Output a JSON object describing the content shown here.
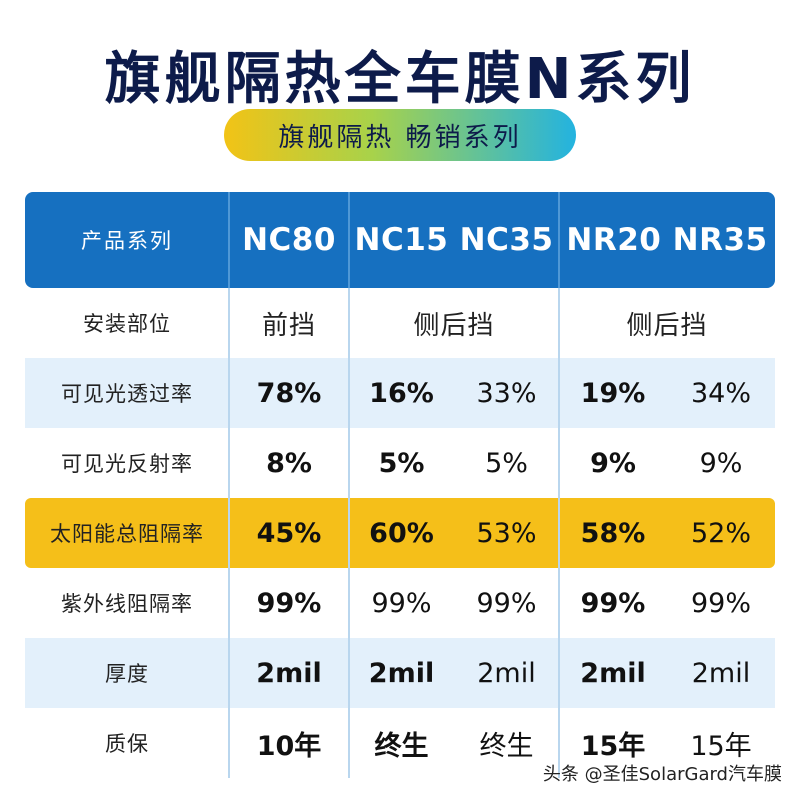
{
  "title": "旗舰隔热全车膜N系列",
  "subtitle": "旗舰隔热 畅销系列",
  "header": {
    "label": "产品系列",
    "col1": "NC80",
    "col2": "NC15 NC35",
    "col3": "NR20 NR35"
  },
  "rows": [
    {
      "label": "安装部位",
      "loc1": "前挡",
      "loc2": "侧后挡",
      "loc3": "侧后挡"
    },
    {
      "label": "可见光透过率",
      "v": [
        "78%",
        "16%",
        "33%",
        "19%",
        "34%"
      ]
    },
    {
      "label": "可见光反射率",
      "v": [
        "8%",
        "5%",
        "5%",
        "9%",
        "9%"
      ]
    },
    {
      "label": "太阳能总阻隔率",
      "v": [
        "45%",
        "60%",
        "53%",
        "58%",
        "52%"
      ]
    },
    {
      "label": "紫外线阻隔率",
      "v": [
        "99%",
        "99%",
        "99%",
        "99%",
        "99%"
      ]
    },
    {
      "label": "厚度",
      "v": [
        "2mil",
        "2mil",
        "2mil",
        "2mil",
        "2mil"
      ]
    },
    {
      "label": "质保",
      "v": [
        "10年",
        "终生",
        "终生",
        "15年",
        "15年"
      ]
    }
  ],
  "watermark": "头条 @圣佳SolarGard汽车膜",
  "colors": {
    "title": "#0d1b4a",
    "header_bg": "#1670c0",
    "row_shade": "#e3f0fb",
    "highlight_row": "#f5bf19",
    "pill_gradient": [
      "#f2c316",
      "#a8d24a",
      "#23b3e0"
    ]
  }
}
